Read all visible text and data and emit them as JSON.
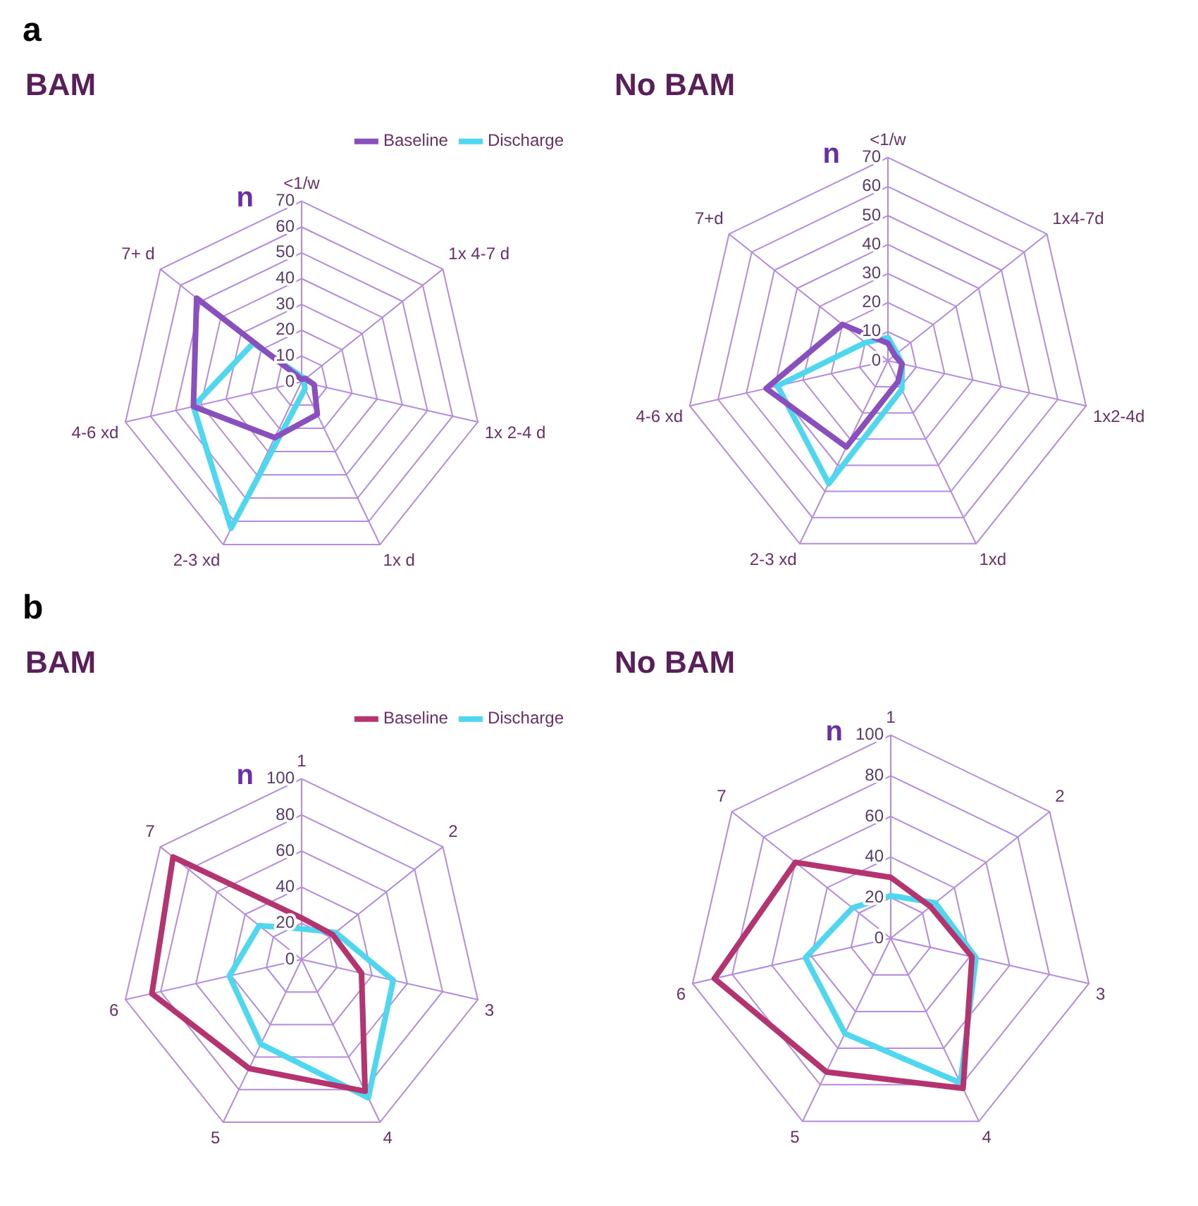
{
  "chart_data": [
    {
      "type": "radar",
      "title": "BAM",
      "ylabel": "n",
      "annotations": [
        "a"
      ],
      "categories": [
        "<1/w",
        "1x 4-7 d",
        "1x 2-4 d",
        "1x d",
        "2-3 xd",
        "4-6 xd",
        "7+ d"
      ],
      "ylim": [
        0,
        70
      ],
      "yticks": [
        0,
        10,
        20,
        30,
        40,
        50,
        60,
        70
      ],
      "grid": true,
      "legend": "top right",
      "marker": "none",
      "series": [
        {
          "name": "Baseline",
          "color": "#8a4fbf",
          "values": [
            1,
            2,
            5,
            14,
            24,
            43,
            52
          ]
        },
        {
          "name": "Discharge",
          "color": "#4dd8f0",
          "values": [
            2,
            2,
            1,
            3,
            63,
            43,
            24
          ]
        }
      ]
    },
    {
      "type": "radar",
      "title": "No BAM",
      "ylabel": "n",
      "categories": [
        "<1/w",
        "1x4-7d",
        "1x2-4d",
        "1xd",
        "2-3 xd",
        "4-6 xd",
        "7+d"
      ],
      "ylim": [
        0,
        70
      ],
      "yticks": [
        0,
        10,
        20,
        30,
        40,
        50,
        60,
        70
      ],
      "grid": true,
      "legend": false,
      "marker": "none",
      "series": [
        {
          "color": "#8a4fbf",
          "values": [
            6,
            3,
            5,
            8,
            33,
            43,
            20
          ]
        },
        {
          "color": "#4dd8f0",
          "values": [
            8,
            4,
            5,
            11,
            47,
            39,
            10
          ]
        }
      ]
    },
    {
      "type": "radar",
      "title": "BAM",
      "ylabel": "n",
      "annotations": [
        "b"
      ],
      "categories": [
        "1",
        "2",
        "3",
        "4",
        "5",
        "6",
        "7"
      ],
      "ylim": [
        0,
        100
      ],
      "yticks": [
        0,
        20,
        40,
        60,
        80,
        100
      ],
      "grid": true,
      "legend": "top right",
      "marker": "none",
      "series": [
        {
          "name": "Baseline",
          "color": "#b5336f",
          "values": [
            23,
            22,
            34,
            81,
            67,
            85,
            91
          ]
        },
        {
          "name": "Discharge",
          "color": "#4dd8f0",
          "values": [
            17,
            24,
            52,
            85,
            52,
            41,
            30
          ]
        }
      ]
    },
    {
      "type": "radar",
      "title": "No BAM",
      "ylabel": "n",
      "categories": [
        "1",
        "2",
        "3",
        "4",
        "5",
        "6",
        "7"
      ],
      "ylim": [
        0,
        100
      ],
      "yticks": [
        0,
        20,
        40,
        60,
        80,
        100
      ],
      "grid": true,
      "legend": false,
      "marker": "none",
      "series": [
        {
          "color": "#b5336f",
          "values": [
            30,
            25,
            41,
            82,
            73,
            89,
            60
          ]
        },
        {
          "color": "#4dd8f0",
          "values": [
            21,
            28,
            43,
            79,
            52,
            43,
            24
          ]
        }
      ]
    }
  ]
}
